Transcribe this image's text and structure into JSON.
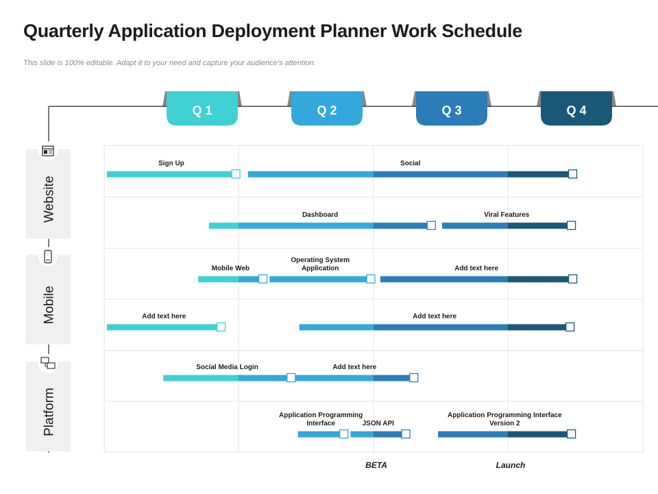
{
  "header": {
    "title": "Quarterly Application Deployment Planner Work Schedule",
    "subtitle": "This slide is 100% editable. Adapt it to your need and capture your audience’s attention."
  },
  "quarters": [
    {
      "label": "Q 1",
      "color": "#3fd0d4"
    },
    {
      "label": "Q 2",
      "color": "#33a8dc"
    },
    {
      "label": "Q 3",
      "color": "#2b7db9"
    },
    {
      "label": "Q 4",
      "color": "#1a5878"
    }
  ],
  "categories": [
    {
      "label": "Website",
      "icon": "website-icon"
    },
    {
      "label": "Mobile",
      "icon": "mobile-phone-icon"
    },
    {
      "label": "Platform",
      "icon": "platform-network-icon"
    }
  ],
  "tasks": [
    {
      "label": "Sign Up",
      "row": 0,
      "start": 0.02,
      "end": 0.98
    },
    {
      "label": "Social",
      "row": 0,
      "start": 1.07,
      "end": 3.48
    },
    {
      "label": "Dashboard",
      "row": 1,
      "start": 0.78,
      "end": 2.43
    },
    {
      "label": "Viral Features",
      "row": 1,
      "start": 2.51,
      "end": 3.47
    },
    {
      "label": "Mobile Web",
      "row": 2,
      "start": 0.7,
      "end": 1.18
    },
    {
      "label": "Operating System Application",
      "row": 2,
      "start": 1.23,
      "end": 1.98
    },
    {
      "label": "Add text here",
      "row": 2,
      "start": 2.05,
      "end": 3.48
    },
    {
      "label": "Add text here",
      "row": 3,
      "start": 0.02,
      "end": 0.87
    },
    {
      "label": "Add text here",
      "row": 3,
      "start": 1.45,
      "end": 3.46
    },
    {
      "label": "Social Media Login",
      "row": 4,
      "start": 0.44,
      "end": 1.39
    },
    {
      "label": "Add text here",
      "row": 4,
      "start": 1.42,
      "end": 2.3
    },
    {
      "label": "Application Programming Interface",
      "row": 5,
      "start": 1.44,
      "end": 1.78
    },
    {
      "label": "JSON API",
      "row": 5,
      "start": 1.83,
      "end": 2.24
    },
    {
      "label": "Application Programming Interface Version 2",
      "row": 5,
      "start": 2.48,
      "end": 3.47
    }
  ],
  "milestones": [
    {
      "label": "BETA",
      "at": 2.0
    },
    {
      "label": "Launch",
      "at": 3.0
    }
  ]
}
